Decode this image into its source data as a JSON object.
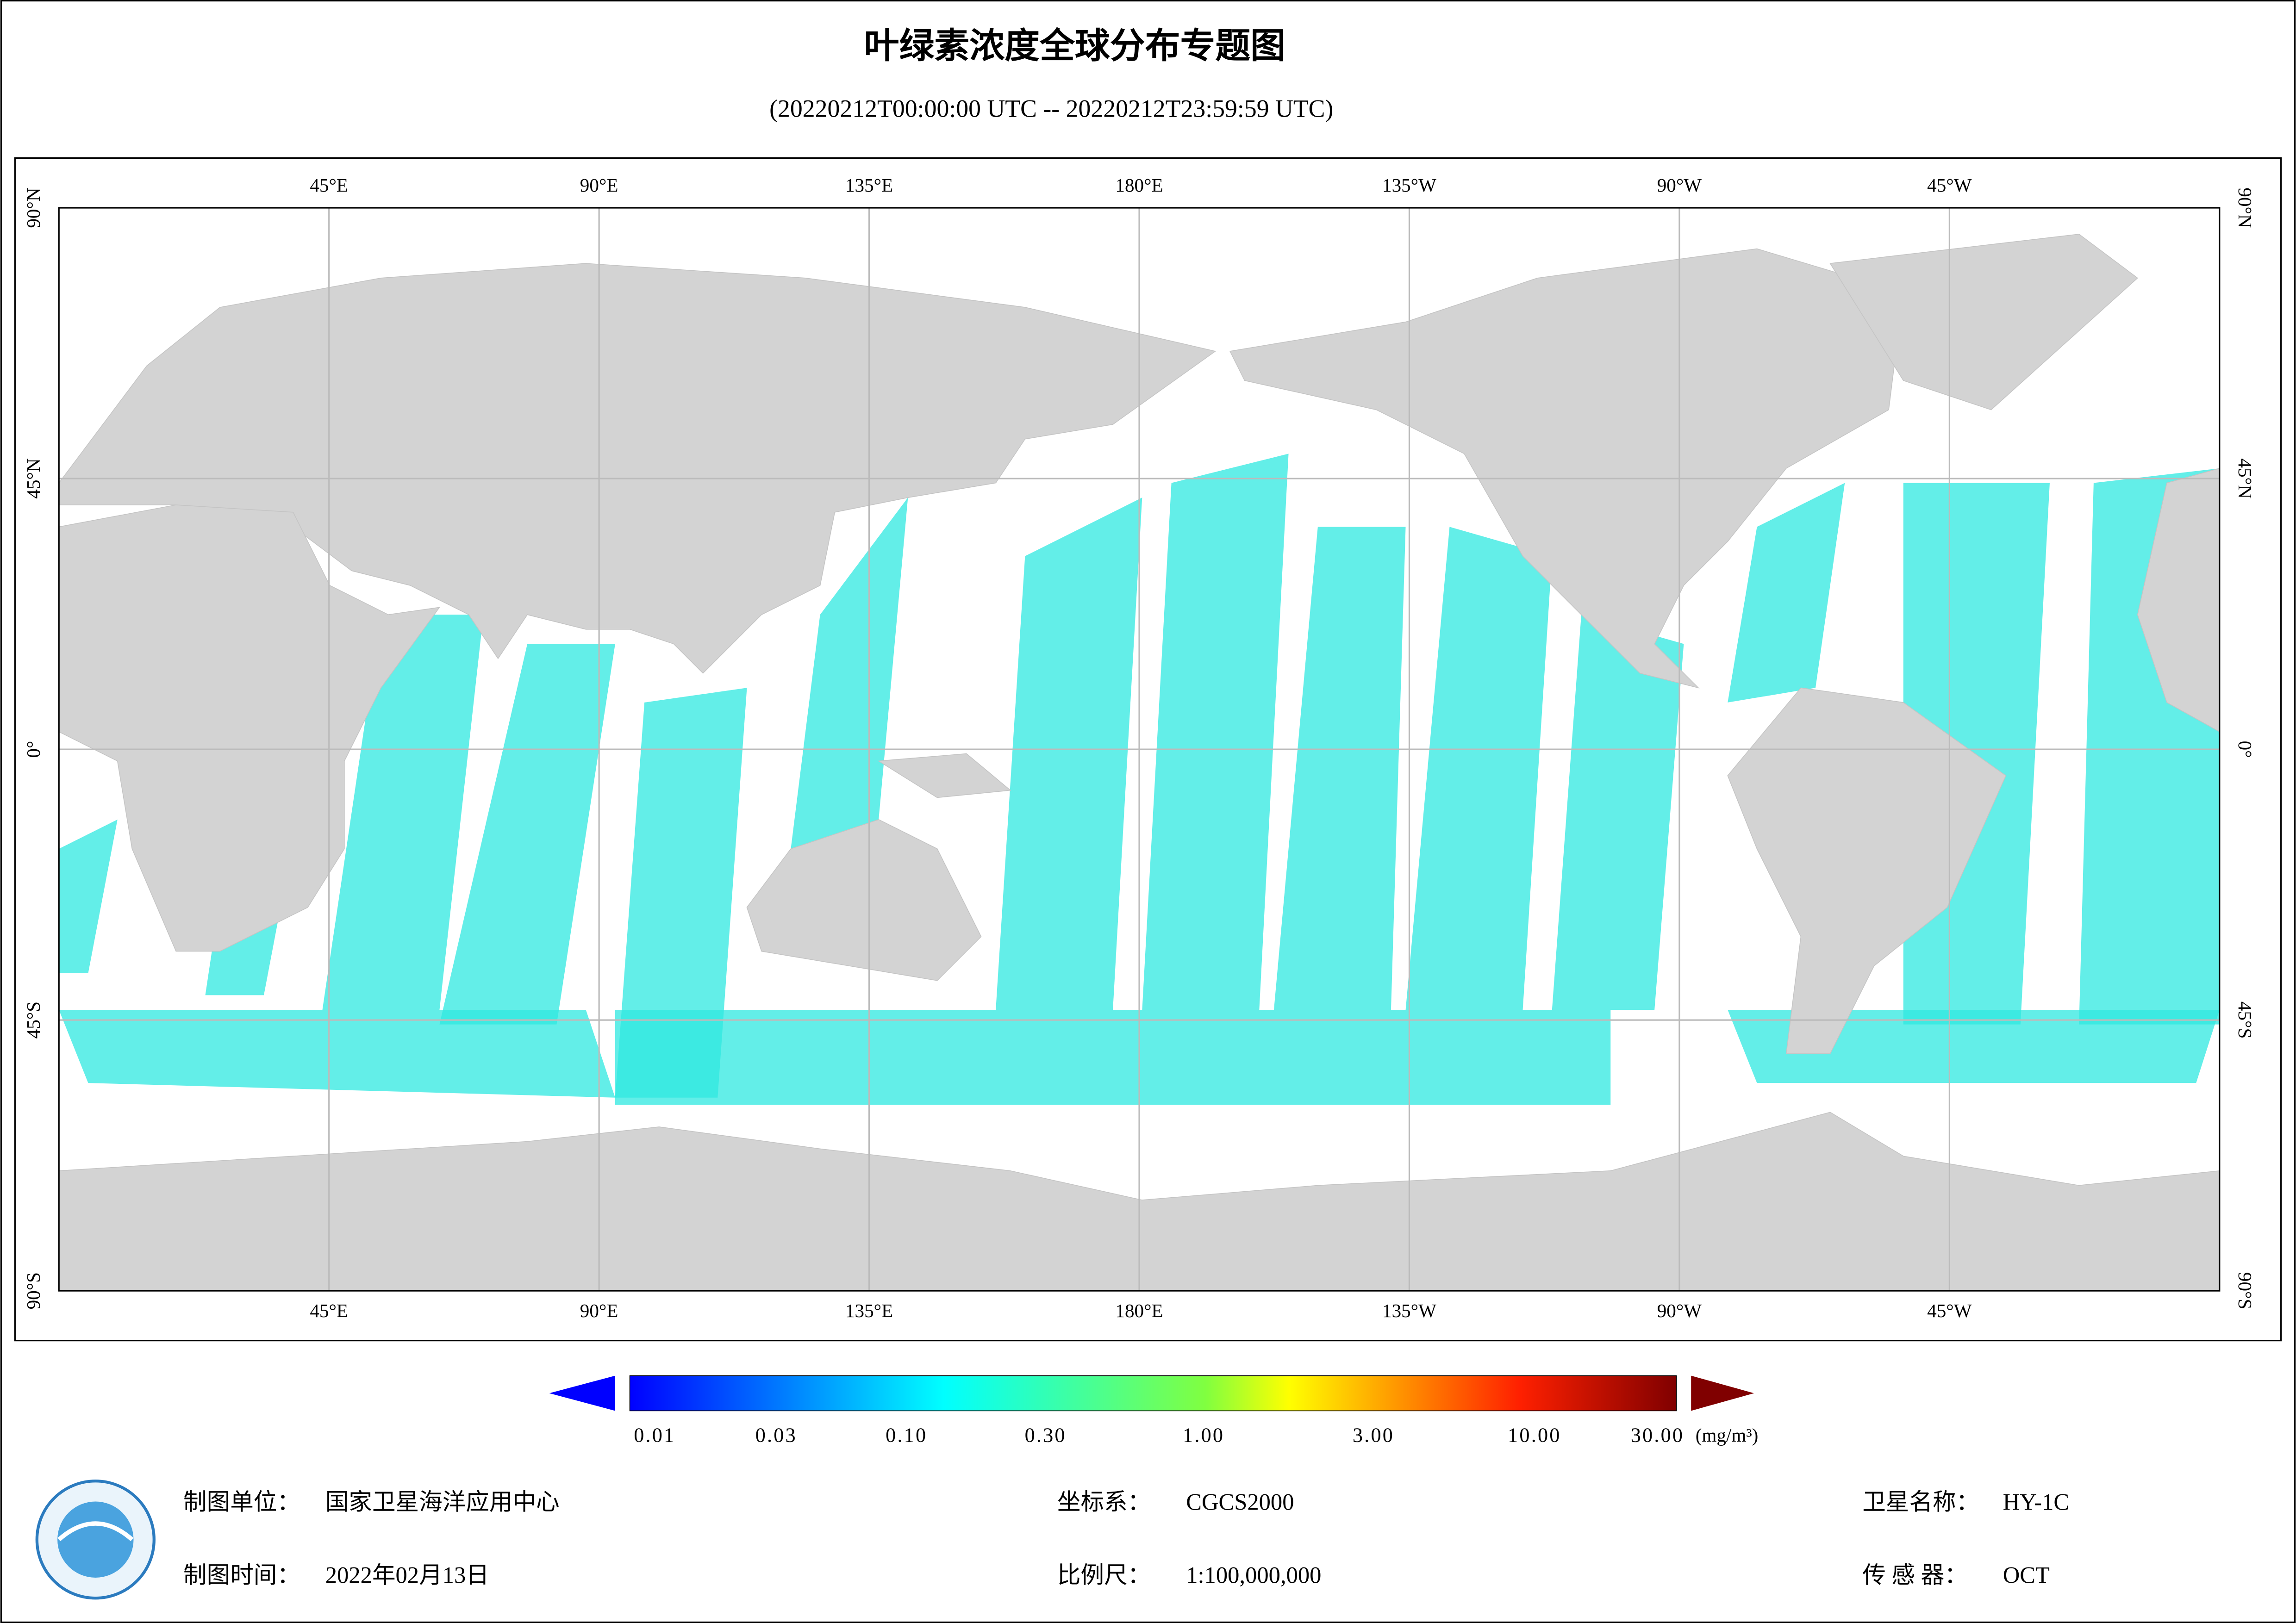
{
  "header": {
    "title": "叶绿素浓度全球分布专题图",
    "subtitle": "(20220212T00:00:00 UTC -- 20220212T23:59:59 UTC)"
  },
  "map": {
    "longitude_labels": [
      "45°E",
      "90°E",
      "135°E",
      "180°E",
      "135°W",
      "90°W",
      "45°W"
    ],
    "latitude_labels": [
      "90°N",
      "45°N",
      "0°",
      "45°S",
      "90°S"
    ]
  },
  "colorbar": {
    "ticks": [
      "0.01",
      "0.03",
      "0.10",
      "0.30",
      "1.00",
      "3.00",
      "10.00",
      "30.00"
    ],
    "unit": "(mg/m³)"
  },
  "footer": {
    "fields": [
      {
        "label": "制图单位：",
        "value": "国家卫星海洋应用中心"
      },
      {
        "label": "制图时间：",
        "value": "2022年02月13日"
      },
      {
        "label": "坐标系：",
        "value": "CGCS2000"
      },
      {
        "label": "比例尺：",
        "value": "1:100,000,000"
      },
      {
        "label": "卫星名称：",
        "value": "HY-1C"
      },
      {
        "label": "传 感 器：",
        "value": "OCT"
      }
    ]
  }
}
